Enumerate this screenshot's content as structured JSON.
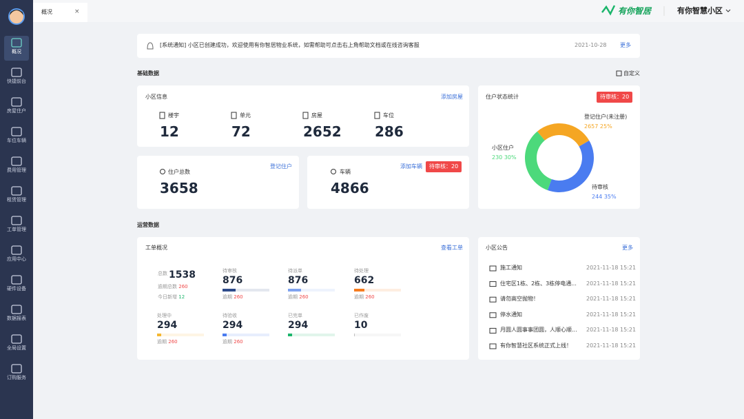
{
  "sidebar": {
    "items": [
      "概况",
      "快捷前台",
      "房屋住户",
      "车位车辆",
      "费用管理",
      "租赁管理",
      "工单管理",
      "应用中心",
      "硬件设备",
      "数据报表",
      "全局设置",
      "订购服务"
    ]
  },
  "tab": "概况",
  "header": {
    "logo": "有你智居",
    "community": "有你智慧小区"
  },
  "notice": {
    "text": "[系统通知] 小区已创建成功，欢迎使用有你智居物业系统，如需帮助可点击右上角帮助文档或在线咨询客服",
    "date": "2021-10-28",
    "more": "更多"
  },
  "basic": {
    "title": "基础数据",
    "customize": "自定义"
  },
  "community_info": {
    "title": "小区信息",
    "action": "添加房屋",
    "stats": [
      {
        "label": "楼宇",
        "value": 12
      },
      {
        "label": "单元",
        "value": 72
      },
      {
        "label": "房屋",
        "value": 2652
      },
      {
        "label": "车位",
        "value": 286
      }
    ]
  },
  "residents": {
    "label": "住户总数",
    "value": 3658,
    "action": "登记住户"
  },
  "vehicles": {
    "label": "车辆",
    "value": 4866,
    "action": "添加车辆",
    "badge": "待审核：20"
  },
  "resident_status": {
    "title": "住户状态统计",
    "badge": "待审核：20",
    "segments": [
      {
        "name": "登记住户(未注册)",
        "value": 2657,
        "percent": 25,
        "percent_label": "25%",
        "color": "#f5a623"
      },
      {
        "name": "待审核",
        "value": 244,
        "percent": 35,
        "percent_label": "35%",
        "color": "#4a7cf0"
      },
      {
        "name": "小区住户",
        "value": 230,
        "percent": 30,
        "percent_label": "30%",
        "color": "#4cd97b"
      }
    ]
  },
  "operations": {
    "title": "运营数据"
  },
  "work_orders": {
    "title": "工单概况",
    "action": "查看工单",
    "total": {
      "label": "总数",
      "value": 1538,
      "overdue_label": "逾期总数",
      "overdue": 260,
      "today_label": "今日新增",
      "today": 12
    },
    "items": [
      {
        "label": "待审核",
        "value": 876,
        "overdue_label": "逾期",
        "overdue": 260,
        "color": "#2d4a8a"
      },
      {
        "label": "待派单",
        "value": 876,
        "overdue_label": "逾期",
        "overdue": 260,
        "color": "#7fa3f0"
      },
      {
        "label": "待处理",
        "value": 662,
        "overdue_label": "逾期",
        "overdue": 260,
        "color": "#f57c1f"
      },
      {
        "label": "处理中",
        "value": 294,
        "overdue_label": "逾期",
        "overdue": 260,
        "color": "#f5b731"
      },
      {
        "label": "待验收",
        "value": 294,
        "overdue_label": "逾期",
        "overdue": 260,
        "color": "#4a7cf0"
      },
      {
        "label": "已完单",
        "value": 294,
        "color": "#1bb56b"
      },
      {
        "label": "已作废",
        "value": 10,
        "color": "#bfbfbf"
      }
    ]
  },
  "announcements": {
    "title": "小区公告",
    "more": "更多",
    "items": [
      {
        "title": "施工通知",
        "time": "2021-11-18 15:21"
      },
      {
        "title": "住宅区1栋、2栋、3栋停电通...",
        "time": "2021-11-18 15:21"
      },
      {
        "title": "请勿高空抛物！",
        "time": "2021-11-18 15:21"
      },
      {
        "title": "停水通知",
        "time": "2021-11-18 15:21"
      },
      {
        "title": "月圆人圆事事团圆，人顺心顺...",
        "time": "2021-11-18 15:21"
      },
      {
        "title": "有你智慧社区系统正式上线！",
        "time": "2021-11-18 15:21"
      }
    ]
  }
}
